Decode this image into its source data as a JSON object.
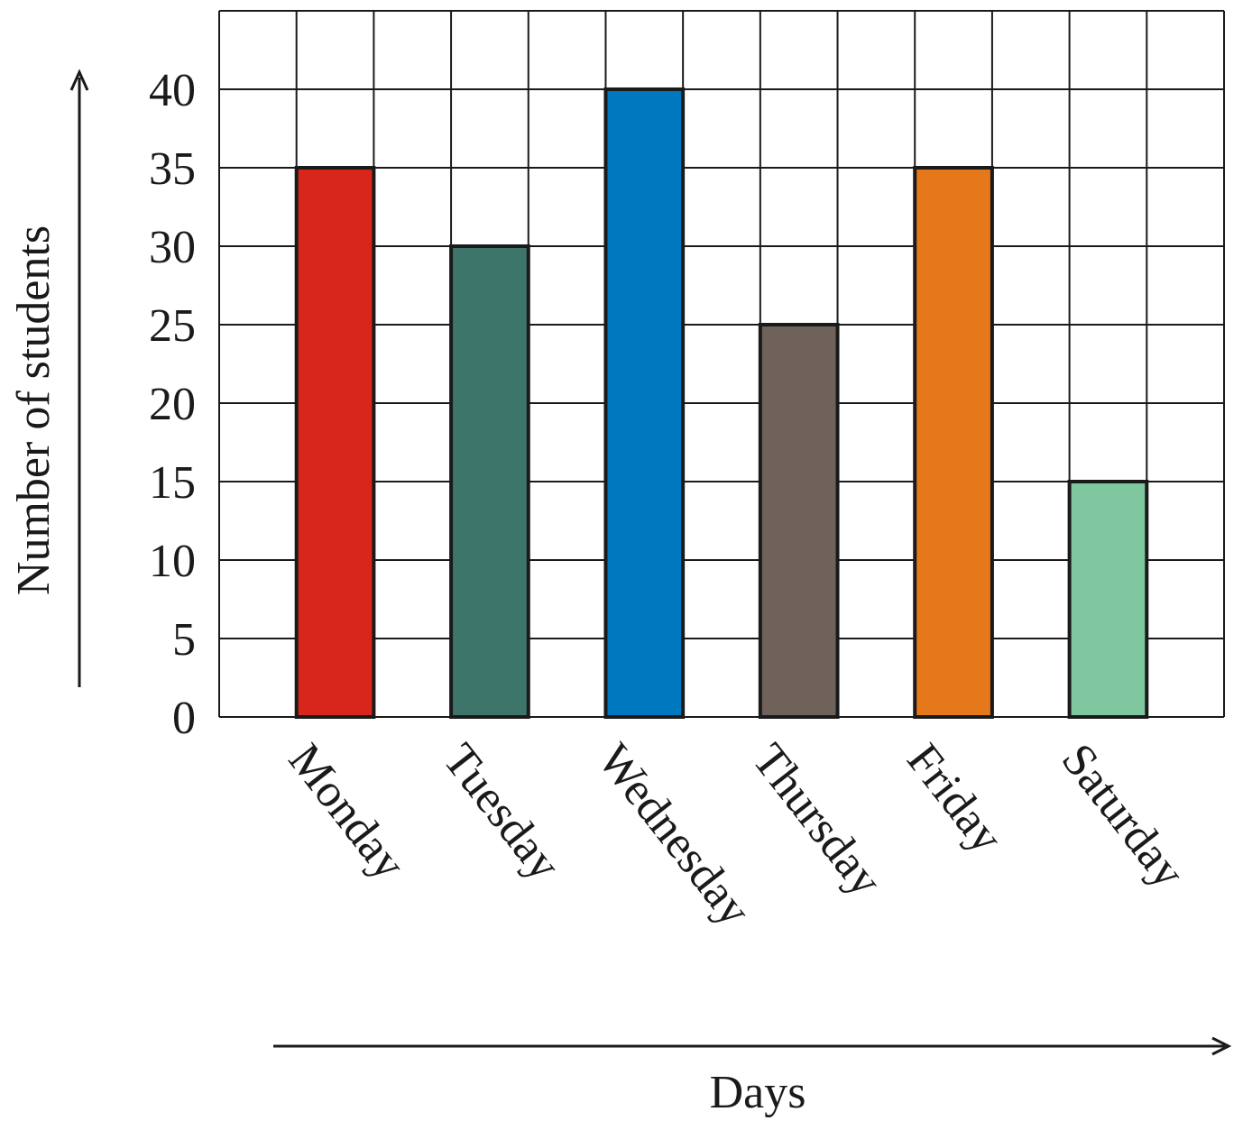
{
  "chart_data": {
    "type": "bar",
    "categories": [
      "Monday",
      "Tuesday",
      "Wednesday",
      "Thursday",
      "Friday",
      "Saturday"
    ],
    "values": [
      35,
      30,
      40,
      25,
      35,
      15
    ],
    "colors": [
      "#d9261c",
      "#3e756b",
      "#0078c0",
      "#6e625a",
      "#e5781b",
      "#7fc79f"
    ],
    "xlabel": "Days",
    "ylabel": "Number of students",
    "ylim": [
      0,
      45
    ],
    "yticks": [
      0,
      5,
      10,
      15,
      20,
      25,
      30,
      35,
      40
    ],
    "ytick_labels": [
      "0",
      "5",
      "10",
      "15",
      "20",
      "25",
      "30",
      "35",
      "40"
    ],
    "grid": true,
    "grid_line_color": "#1a1a1a",
    "bar_outline_color": "#1a1a1a"
  }
}
